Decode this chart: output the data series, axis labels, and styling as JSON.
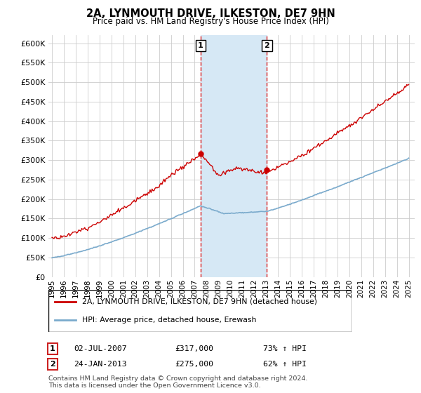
{
  "title": "2A, LYNMOUTH DRIVE, ILKESTON, DE7 9HN",
  "subtitle": "Price paid vs. HM Land Registry's House Price Index (HPI)",
  "ylim": [
    0,
    620000
  ],
  "yticks": [
    0,
    50000,
    100000,
    150000,
    200000,
    250000,
    300000,
    350000,
    400000,
    450000,
    500000,
    550000,
    600000
  ],
  "xlim_start": 1994.7,
  "xlim_end": 2025.5,
  "sale1_x": 2007.5,
  "sale1_y": 317000,
  "sale2_x": 2013.07,
  "sale2_y": 275000,
  "shade_color": "#d6e8f5",
  "vline_color": "#dd2222",
  "red_line_color": "#cc0000",
  "blue_line_color": "#7aaacc",
  "legend1_label": "2A, LYNMOUTH DRIVE, ILKESTON, DE7 9HN (detached house)",
  "legend2_label": "HPI: Average price, detached house, Erewash",
  "annotation1_date": "02-JUL-2007",
  "annotation1_price": "£317,000",
  "annotation1_hpi": "73% ↑ HPI",
  "annotation2_date": "24-JAN-2013",
  "annotation2_price": "£275,000",
  "annotation2_hpi": "62% ↑ HPI",
  "footer1": "Contains HM Land Registry data © Crown copyright and database right 2024.",
  "footer2": "This data is licensed under the Open Government Licence v3.0.",
  "background_color": "#ffffff",
  "grid_color": "#cccccc"
}
